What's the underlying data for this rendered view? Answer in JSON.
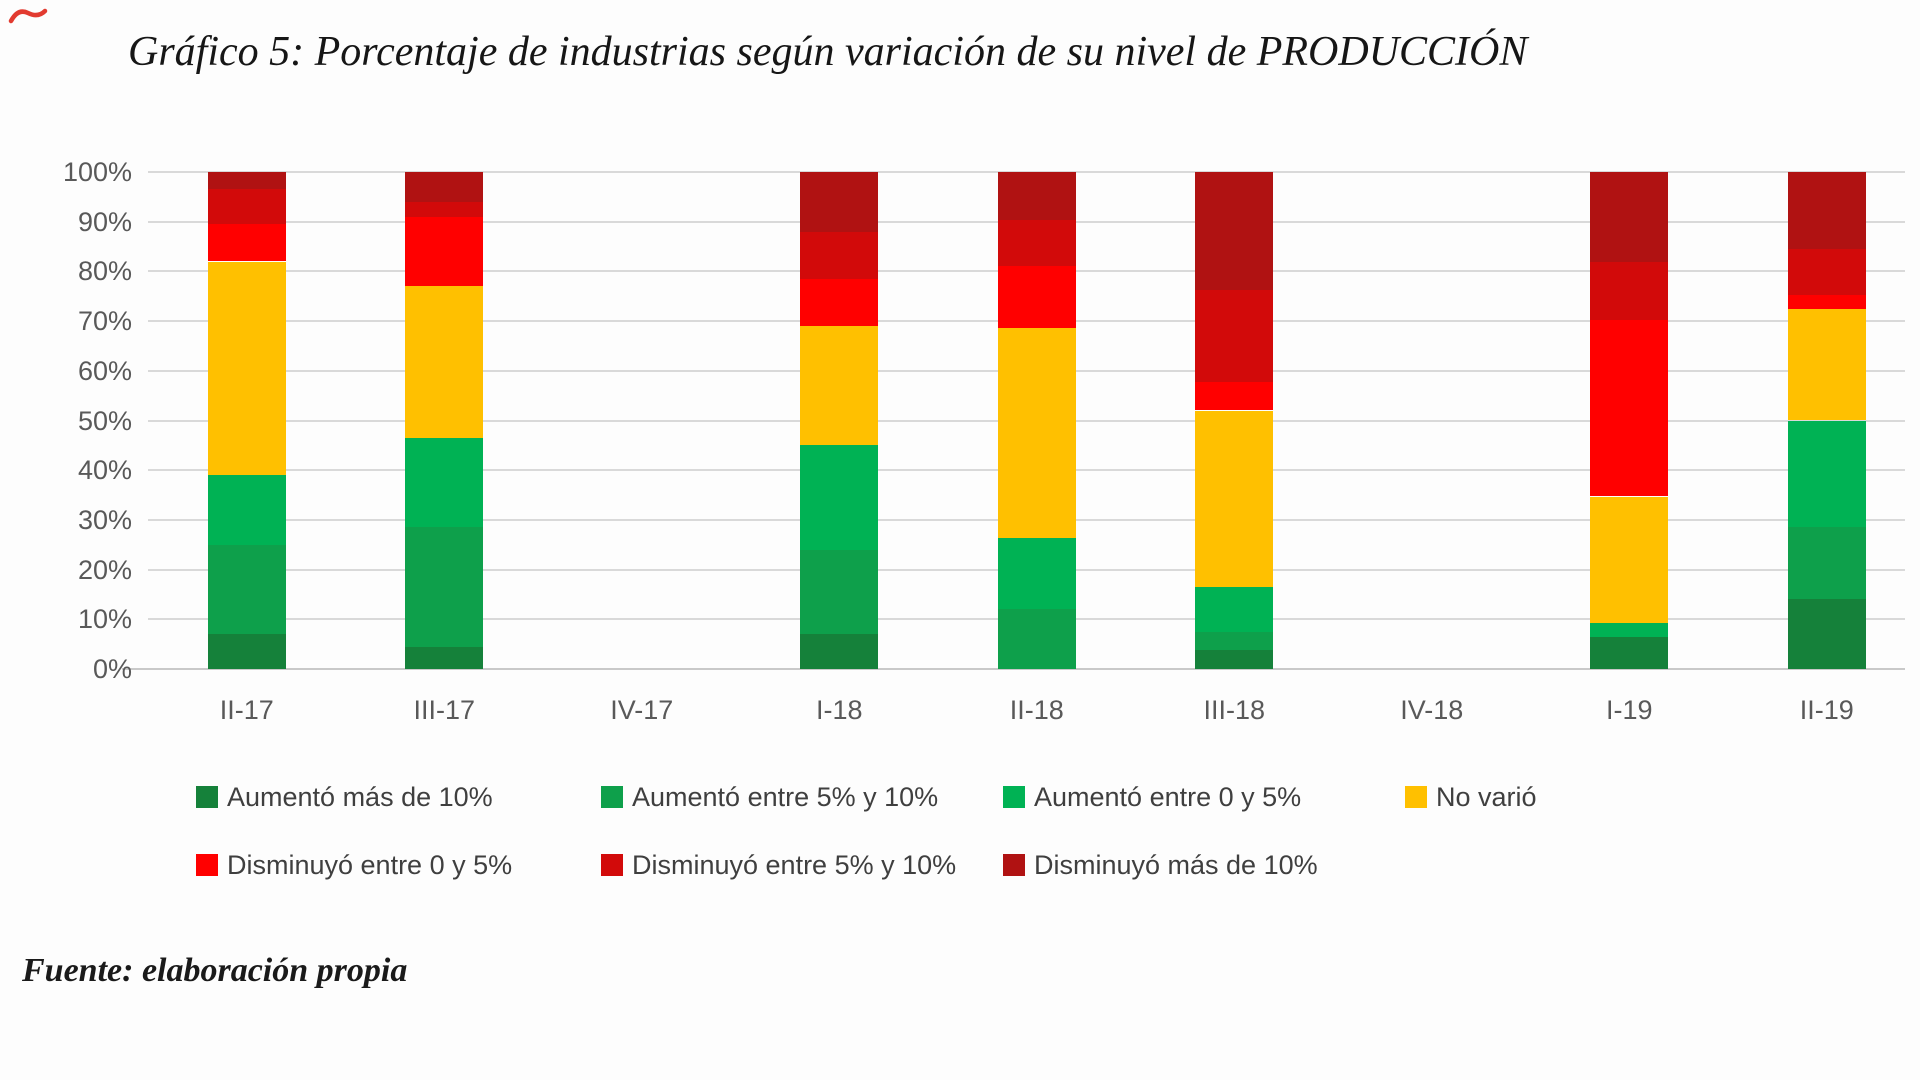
{
  "title": "Gráfico 5: Porcentaje de industrias según variación de su nivel de PRODUCCIÓN",
  "source": "Fuente: elaboración propia",
  "chart_data": {
    "type": "bar",
    "stacked": true,
    "title": "Gráfico 5: Porcentaje de industrias según variación de su nivel de PRODUCCIÓN",
    "xlabel": "",
    "ylabel": "",
    "ylim": [
      0,
      100
    ],
    "grid": true,
    "legend_position": "bottom",
    "y_ticks": [
      "0%",
      "10%",
      "20%",
      "30%",
      "40%",
      "50%",
      "60%",
      "70%",
      "80%",
      "90%",
      "100%"
    ],
    "categories": [
      "II-17",
      "III-17",
      "IV-17",
      "I-18",
      "II-18",
      "III-18",
      "IV-18",
      "I-19",
      "II-19"
    ],
    "series": [
      {
        "name": "Aumentó más de 10%",
        "color": "#15813a",
        "values": [
          7.0,
          4.5,
          0,
          7.0,
          0.0,
          3.8,
          0,
          6.5,
          14.0
        ]
      },
      {
        "name": "Aumentó entre 5% y 10%",
        "color": "#0ea04b",
        "values": [
          18.0,
          24.0,
          0,
          17.0,
          12.0,
          3.7,
          0,
          0.0,
          14.5
        ]
      },
      {
        "name": "Aumentó entre 0 y 5%",
        "color": "#00b254",
        "values": [
          14.0,
          18.0,
          0,
          21.0,
          14.3,
          9.0,
          0,
          2.7,
          21.5
        ]
      },
      {
        "name": "No varió",
        "color": "#ffc000",
        "values": [
          43.0,
          30.5,
          0,
          24.0,
          42.3,
          35.5,
          0,
          25.5,
          22.5
        ]
      },
      {
        "name": "Disminuyó entre 0 y 5%",
        "color": "#ff0000",
        "values": [
          7.5,
          14.0,
          0,
          9.5,
          12.4,
          5.8,
          0,
          35.5,
          2.7
        ]
      },
      {
        "name": "Disminuyó entre 5% y 10%",
        "color": "#d20a0a",
        "values": [
          7.0,
          3.0,
          0,
          9.5,
          9.3,
          18.5,
          0,
          11.8,
          9.4
        ]
      },
      {
        "name": "Disminuyó más de 10%",
        "color": "#b01212",
        "values": [
          3.5,
          6.0,
          0,
          12.0,
          9.7,
          23.7,
          0,
          18.0,
          15.4
        ]
      }
    ]
  },
  "annotations": {
    "pen_mark": "red-pen-mark"
  }
}
